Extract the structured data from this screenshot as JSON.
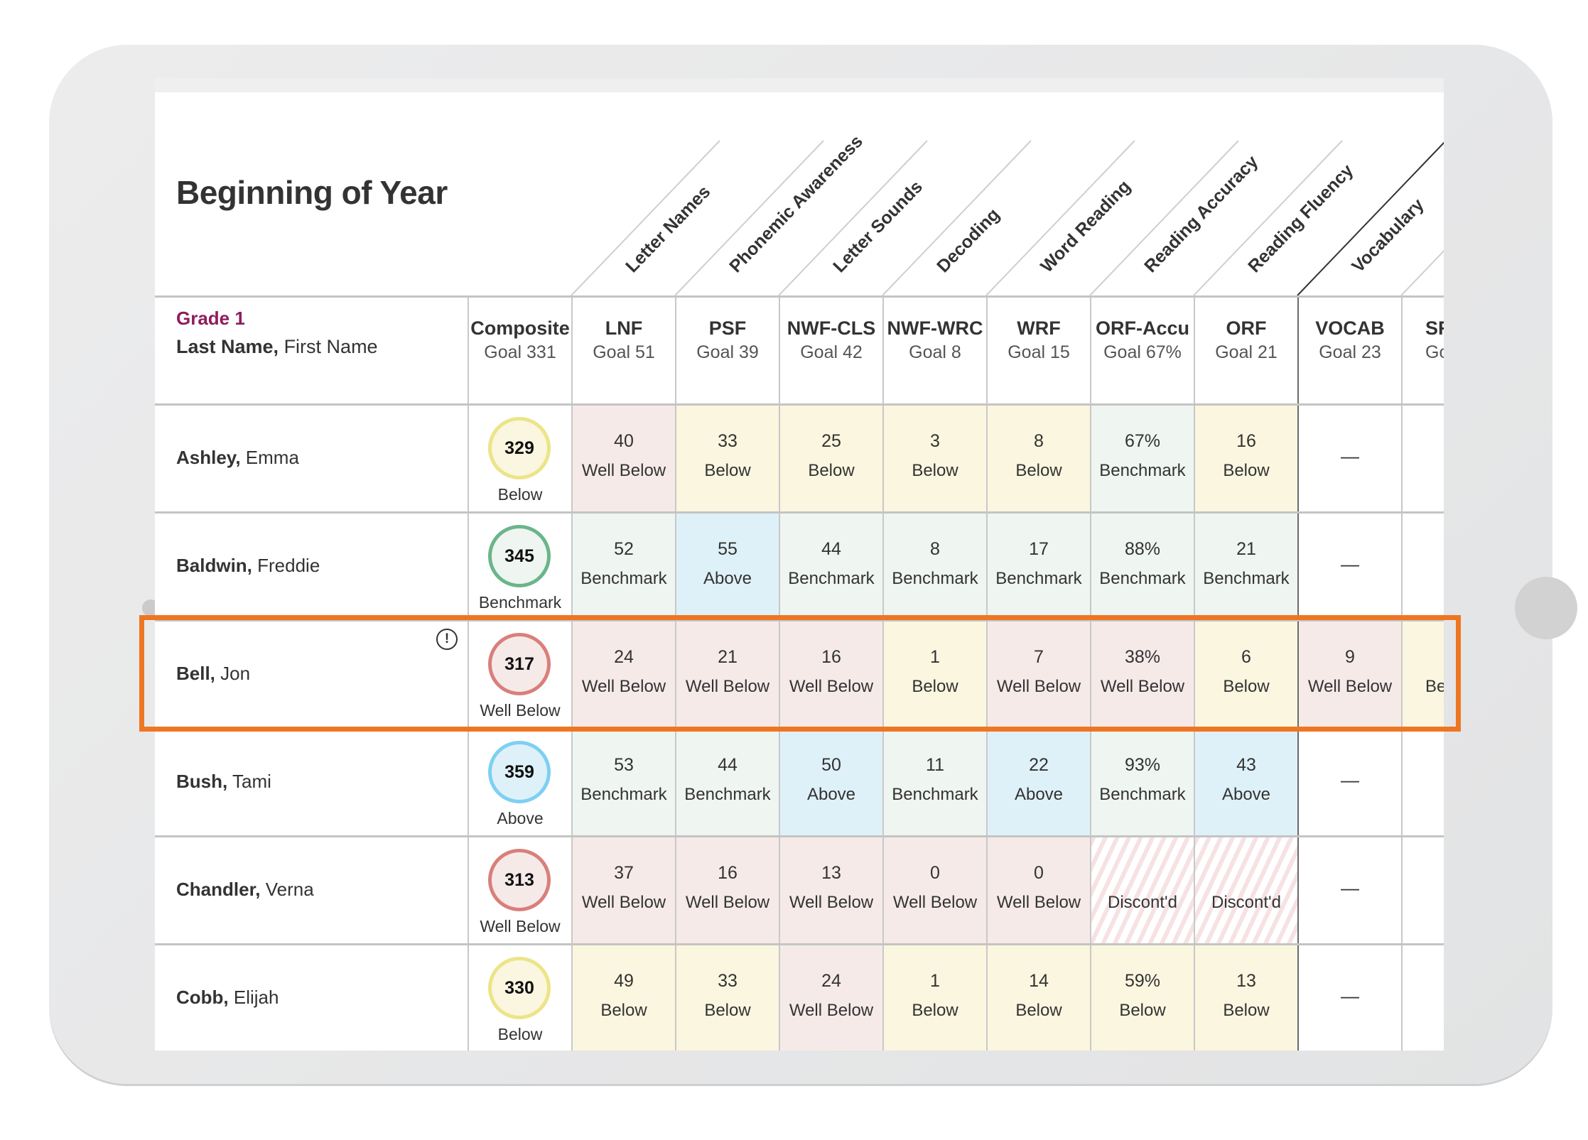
{
  "title": "Beginning of Year",
  "grade": "Grade 1",
  "name_header": {
    "last": "Last Name,",
    "first": " First Name"
  },
  "composite_header": {
    "code": "Composite",
    "goal": "Goal 331"
  },
  "columns": [
    {
      "code": "LNF",
      "goal": "Goal 51",
      "full": "Letter Names"
    },
    {
      "code": "PSF",
      "goal": "Goal 39",
      "full": "Phonemic Awareness"
    },
    {
      "code": "NWF-CLS",
      "goal": "Goal 42",
      "full": "Letter Sounds"
    },
    {
      "code": "NWF-WRC",
      "goal": "Goal 8",
      "full": "Decoding"
    },
    {
      "code": "WRF",
      "goal": "Goal 15",
      "full": "Word Reading"
    },
    {
      "code": "ORF-Accu",
      "goal": "Goal 67%",
      "full": "Reading Accuracy"
    },
    {
      "code": "ORF",
      "goal": "Goal 21",
      "full": "Reading Fluency"
    },
    {
      "code": "VOCAB",
      "goal": "Goal 23",
      "full": "Vocabulary"
    },
    {
      "code": "SF",
      "goal": "Go",
      "full": ""
    }
  ],
  "students": [
    {
      "last": "Ashley,",
      "first": " Emma",
      "alert": false,
      "composite": {
        "score": "329",
        "status": "Below"
      },
      "scores": [
        [
          "40",
          "Well Below"
        ],
        [
          "33",
          "Below"
        ],
        [
          "25",
          "Below"
        ],
        [
          "3",
          "Below"
        ],
        [
          "8",
          "Below"
        ],
        [
          "67%",
          "Benchmark"
        ],
        [
          "16",
          "Below"
        ],
        [
          "—",
          ""
        ],
        [
          "",
          ""
        ]
      ]
    },
    {
      "last": "Baldwin,",
      "first": " Freddie",
      "alert": false,
      "composite": {
        "score": "345",
        "status": "Benchmark"
      },
      "scores": [
        [
          "52",
          "Benchmark"
        ],
        [
          "55",
          "Above"
        ],
        [
          "44",
          "Benchmark"
        ],
        [
          "8",
          "Benchmark"
        ],
        [
          "17",
          "Benchmark"
        ],
        [
          "88%",
          "Benchmark"
        ],
        [
          "21",
          "Benchmark"
        ],
        [
          "—",
          ""
        ],
        [
          "",
          ""
        ]
      ]
    },
    {
      "last": "Bell,",
      "first": " Jon",
      "alert": true,
      "alert_glyph": "!",
      "composite": {
        "score": "317",
        "status": "Well Below"
      },
      "scores": [
        [
          "24",
          "Well Below"
        ],
        [
          "21",
          "Well Below"
        ],
        [
          "16",
          "Well Below"
        ],
        [
          "1",
          "Below"
        ],
        [
          "7",
          "Well Below"
        ],
        [
          "38%",
          "Well Below"
        ],
        [
          "6",
          "Below"
        ],
        [
          "9",
          "Well Below"
        ],
        [
          "",
          "Be"
        ]
      ]
    },
    {
      "last": "Bush,",
      "first": " Tami",
      "alert": false,
      "composite": {
        "score": "359",
        "status": "Above"
      },
      "scores": [
        [
          "53",
          "Benchmark"
        ],
        [
          "44",
          "Benchmark"
        ],
        [
          "50",
          "Above"
        ],
        [
          "11",
          "Benchmark"
        ],
        [
          "22",
          "Above"
        ],
        [
          "93%",
          "Benchmark"
        ],
        [
          "43",
          "Above"
        ],
        [
          "—",
          ""
        ],
        [
          "",
          ""
        ]
      ]
    },
    {
      "last": "Chandler,",
      "first": " Verna",
      "alert": false,
      "composite": {
        "score": "313",
        "status": "Well Below"
      },
      "scores": [
        [
          "37",
          "Well Below"
        ],
        [
          "16",
          "Well Below"
        ],
        [
          "13",
          "Well Below"
        ],
        [
          "0",
          "Well Below"
        ],
        [
          "0",
          "Well Below"
        ],
        [
          "",
          "Discont'd"
        ],
        [
          "",
          "Discont'd"
        ],
        [
          "—",
          ""
        ],
        [
          "",
          ""
        ]
      ]
    },
    {
      "last": "Cobb,",
      "first": " Elijah",
      "alert": false,
      "composite": {
        "score": "330",
        "status": "Below"
      },
      "scores": [
        [
          "49",
          "Below"
        ],
        [
          "33",
          "Below"
        ],
        [
          "24",
          "Well Below"
        ],
        [
          "1",
          "Below"
        ],
        [
          "14",
          "Below"
        ],
        [
          "59%",
          "Below"
        ],
        [
          "13",
          "Below"
        ],
        [
          "—",
          ""
        ],
        [
          "",
          ""
        ]
      ]
    }
  ],
  "colors": {
    "highlight": "#ee7623",
    "grade": "#8e1d5c",
    "Well Below": {
      "bg": "#f6eae9",
      "ring": "#d97f7b"
    },
    "Below": {
      "bg": "#faf6df",
      "ring": "#ece488"
    },
    "Benchmark": {
      "bg": "#eff5f1",
      "ring": "#6bb58a"
    },
    "Above": {
      "bg": "#dff1f8",
      "ring": "#7dd0f2"
    }
  }
}
